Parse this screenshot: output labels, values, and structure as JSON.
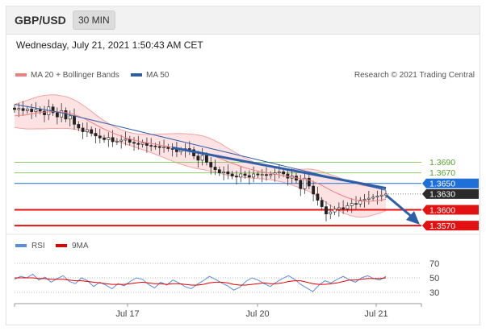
{
  "header": {
    "pair": "GBP/USD",
    "timeframe": "30 MIN"
  },
  "datetime": "Wednesday, July 21, 2021 1:50:43 AM CET",
  "legend": {
    "bb": {
      "label": "MA 20 + Bollinger Bands",
      "color": "#f08080"
    },
    "ma50": {
      "label": "MA 50",
      "color": "#2f5ea8"
    },
    "credit": "Research © 2021 Trading Central"
  },
  "rsi_legend": {
    "rsi": {
      "label": "RSI",
      "color": "#5b8dd9"
    },
    "ma": {
      "label": "9MA",
      "color": "#e00000"
    }
  },
  "chart_data": [
    {
      "type": "candlestick",
      "ylim": [
        1.3555,
        1.3845
      ],
      "x_labels": [
        "Jul 17",
        "Jul 20",
        "Jul 21"
      ],
      "levels": [
        {
          "value": 1.369,
          "label": "1.3690",
          "kind": "resistance",
          "color": "#8ec96b"
        },
        {
          "value": 1.367,
          "label": "1.3670",
          "kind": "resistance",
          "color": "#8ec96b"
        },
        {
          "value": 1.365,
          "label": "1.3650",
          "kind": "pivot",
          "color": "#1f6fd8"
        },
        {
          "value": 1.363,
          "label": "1.3630",
          "kind": "last-price",
          "color": "#333333"
        },
        {
          "value": 1.36,
          "label": "1.3600",
          "kind": "support",
          "color": "#e31212"
        },
        {
          "value": 1.357,
          "label": "1.3570",
          "kind": "support",
          "color": "#e31212"
        }
      ],
      "close_path": [
        1.379,
        1.3792,
        1.3788,
        1.3791,
        1.3786,
        1.379,
        1.3787,
        1.378,
        1.3795,
        1.3784,
        1.3776,
        1.3788,
        1.3772,
        1.3778,
        1.3762,
        1.3755,
        1.3748,
        1.3752,
        1.3745,
        1.374,
        1.3736,
        1.3733,
        1.3737,
        1.3729,
        1.373,
        1.3732,
        1.3734,
        1.3728,
        1.3726,
        1.3724,
        1.3727,
        1.3722,
        1.3721,
        1.372,
        1.3718,
        1.3719,
        1.3716,
        1.3715,
        1.371,
        1.3713,
        1.3716,
        1.3714,
        1.3702,
        1.3694,
        1.3703,
        1.369,
        1.3681,
        1.3676,
        1.367,
        1.3672,
        1.3668,
        1.3664,
        1.3662,
        1.3668,
        1.3665,
        1.3662,
        1.3668,
        1.3666,
        1.3667,
        1.3665,
        1.3667,
        1.367,
        1.3672,
        1.3668,
        1.366,
        1.3664,
        1.3656,
        1.364,
        1.366,
        1.3645,
        1.363,
        1.3618,
        1.3606,
        1.3592,
        1.3596,
        1.3601,
        1.3604,
        1.3602,
        1.3608,
        1.3612,
        1.3611,
        1.3618,
        1.362,
        1.3622,
        1.3624,
        1.3626,
        1.3628,
        1.363
      ],
      "ma20": [
        1.3778,
        1.3779,
        1.378,
        1.3782,
        1.3784,
        1.3785,
        1.3786,
        1.3786,
        1.3785,
        1.3784,
        1.3781,
        1.3777,
        1.3772,
        1.3766,
        1.376,
        1.3754,
        1.3749,
        1.3744,
        1.374,
        1.3736,
        1.3733,
        1.373,
        1.3728,
        1.3726,
        1.3724,
        1.3722,
        1.372,
        1.3718,
        1.3716,
        1.3714,
        1.3712,
        1.371,
        1.3708,
        1.3705,
        1.3701,
        1.3697,
        1.3692,
        1.3688,
        1.3684,
        1.368,
        1.3677,
        1.3674,
        1.3672,
        1.367,
        1.3668,
        1.3666,
        1.3664,
        1.3662,
        1.366,
        1.3658,
        1.3656,
        1.3652,
        1.3647,
        1.3641,
        1.3635,
        1.363,
        1.3625,
        1.3621,
        1.3618,
        1.3616,
        1.3616,
        1.3617,
        1.3618,
        1.362
      ],
      "ma50": [
        1.38,
        1.3797,
        1.3794,
        1.3791,
        1.3788,
        1.3785,
        1.3781,
        1.3777,
        1.3773,
        1.3769,
        1.3765,
        1.3761,
        1.3757,
        1.3753,
        1.3749,
        1.3745,
        1.3741,
        1.3737,
        1.3733,
        1.3729,
        1.3725,
        1.3721,
        1.3717,
        1.3713,
        1.3709,
        1.3705,
        1.3701,
        1.3697,
        1.3693,
        1.3689,
        1.3685,
        1.3681,
        1.3677,
        1.3673,
        1.3669,
        1.3665,
        1.3661,
        1.3657,
        1.3653,
        1.3649,
        1.3645,
        1.3641,
        1.3637
      ]
    },
    {
      "type": "line",
      "title": "RSI",
      "ylim": [
        20,
        80
      ],
      "y_ticks": [
        70,
        50,
        30
      ],
      "rsi": [
        48,
        52,
        50,
        55,
        47,
        51,
        44,
        49,
        53,
        45,
        42,
        50,
        46,
        38,
        44,
        40,
        35,
        42,
        39,
        45,
        50,
        48,
        41,
        36,
        44,
        40,
        47,
        43,
        38,
        35,
        41,
        46,
        52,
        48,
        43,
        39,
        33,
        37,
        45,
        50,
        47,
        42,
        38,
        44,
        49,
        53,
        48,
        41,
        36,
        31,
        40,
        46,
        43,
        48,
        52,
        47,
        44,
        50,
        53,
        49,
        47,
        52
      ],
      "ma9": [
        50,
        50,
        50,
        50,
        49,
        49,
        48,
        48,
        48,
        47,
        46,
        46,
        45,
        44,
        43,
        42,
        41,
        41,
        41,
        42,
        43,
        44,
        43,
        42,
        42,
        41,
        42,
        42,
        41,
        40,
        40,
        41,
        43,
        44,
        44,
        43,
        41,
        40,
        40,
        41,
        42,
        43,
        42,
        42,
        43,
        45,
        46,
        46,
        44,
        42,
        41,
        41,
        42,
        43,
        45,
        47,
        47,
        48,
        49,
        49,
        49,
        50
      ]
    }
  ]
}
